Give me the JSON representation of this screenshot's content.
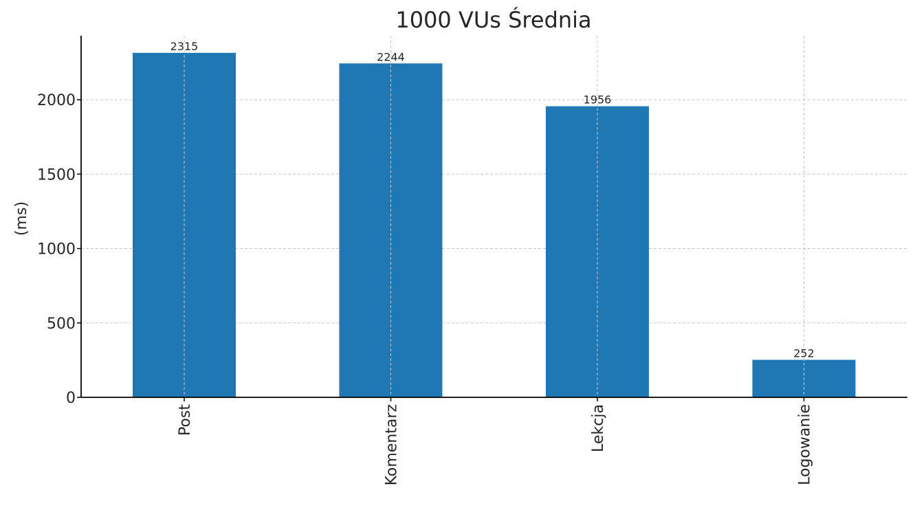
{
  "chart_data": {
    "type": "bar",
    "title": "1000 VUs Średnia",
    "xlabel": "",
    "ylabel": "(ms)",
    "categories": [
      "Post",
      "Komentarz",
      "Lekcja",
      "Logowanie"
    ],
    "values": [
      2315,
      2244,
      1956,
      252
    ],
    "data_labels": [
      "2315",
      "2244",
      "1956",
      "252"
    ],
    "ylim": [
      0,
      2430
    ],
    "yticks": [
      0,
      500,
      1000,
      1500,
      2000
    ],
    "ytick_labels": [
      "0",
      "500",
      "1000",
      "1500",
      "2000"
    ],
    "grid": true,
    "legend": "none",
    "colors": {
      "bar": "#1f77b4",
      "grid": "#c8c8c8",
      "axis": "#000000",
      "text": "#262626"
    }
  }
}
